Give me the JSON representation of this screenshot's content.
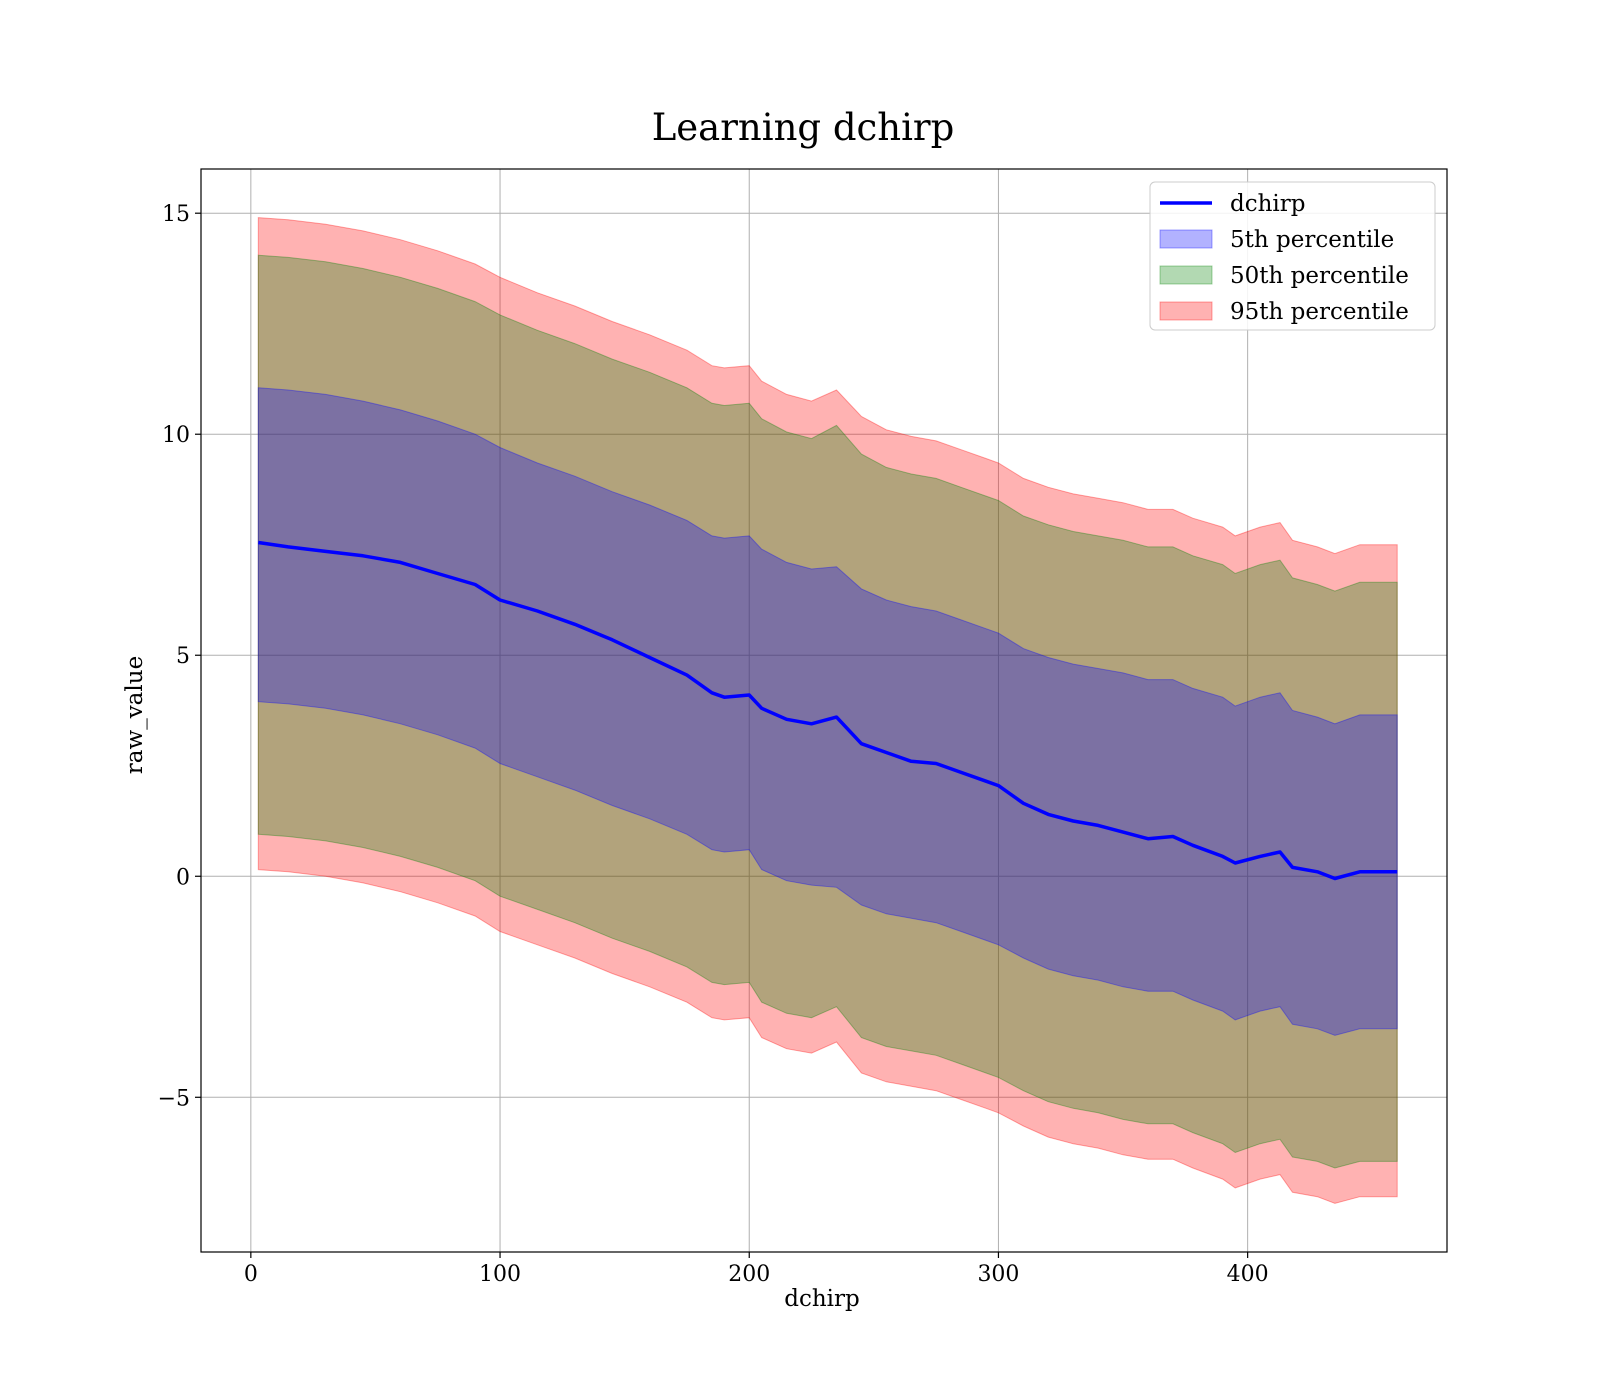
{
  "chart_data": {
    "type": "area",
    "title": "Learning dchirp",
    "xlabel": "dchirp",
    "ylabel": "raw_value",
    "xlim": [
      -20,
      480
    ],
    "ylim": [
      -8.5,
      16
    ],
    "xticks": [
      0,
      100,
      200,
      300,
      400
    ],
    "yticks": [
      -5,
      0,
      5,
      10,
      15
    ],
    "xtick_labels": [
      "0",
      "100",
      "200",
      "300",
      "400"
    ],
    "ytick_labels": [
      "−5",
      "0",
      "5",
      "10",
      "15"
    ],
    "grid": true,
    "legend_position": "top-right",
    "x": [
      3,
      15,
      30,
      45,
      60,
      75,
      90,
      100,
      115,
      130,
      145,
      160,
      175,
      185,
      190,
      200,
      205,
      215,
      225,
      235,
      245,
      255,
      265,
      275,
      285,
      295,
      300,
      310,
      320,
      330,
      340,
      350,
      360,
      370,
      378,
      390,
      395,
      405,
      413,
      418,
      428,
      435,
      445,
      460
    ],
    "series": [
      {
        "name": "dchirp",
        "kind": "line",
        "color": "#0000ff",
        "values": [
          7.55,
          7.45,
          7.35,
          7.25,
          7.1,
          6.85,
          6.6,
          6.25,
          6.0,
          5.7,
          5.35,
          4.95,
          4.55,
          4.15,
          4.05,
          4.1,
          3.8,
          3.55,
          3.45,
          3.6,
          3.0,
          2.8,
          2.6,
          2.55,
          2.35,
          2.15,
          2.05,
          1.65,
          1.4,
          1.25,
          1.15,
          1.0,
          0.85,
          0.9,
          0.7,
          0.45,
          0.3,
          0.45,
          0.55,
          0.2,
          0.1,
          -0.05,
          0.1,
          0.1
        ]
      },
      {
        "name": "5th percentile",
        "kind": "band",
        "color": "#0000ff",
        "upper": [
          11.05,
          11.0,
          10.9,
          10.75,
          10.55,
          10.3,
          10.0,
          9.7,
          9.35,
          9.05,
          8.7,
          8.4,
          8.05,
          7.7,
          7.65,
          7.7,
          7.4,
          7.1,
          6.95,
          7.0,
          6.5,
          6.25,
          6.1,
          6.0,
          5.8,
          5.6,
          5.5,
          5.15,
          4.95,
          4.8,
          4.7,
          4.6,
          4.45,
          4.45,
          4.25,
          4.05,
          3.85,
          4.05,
          4.15,
          3.75,
          3.6,
          3.45,
          3.65,
          3.65
        ],
        "lower": [
          3.95,
          3.9,
          3.8,
          3.65,
          3.45,
          3.2,
          2.9,
          2.55,
          2.25,
          1.95,
          1.6,
          1.3,
          0.95,
          0.6,
          0.55,
          0.6,
          0.15,
          -0.1,
          -0.2,
          -0.25,
          -0.65,
          -0.85,
          -0.95,
          -1.05,
          -1.25,
          -1.45,
          -1.55,
          -1.85,
          -2.1,
          -2.25,
          -2.35,
          -2.5,
          -2.6,
          -2.6,
          -2.8,
          -3.05,
          -3.25,
          -3.05,
          -2.95,
          -3.35,
          -3.45,
          -3.6,
          -3.45,
          -3.45
        ]
      },
      {
        "name": "50th percentile",
        "kind": "band",
        "color": "#008000",
        "upper": [
          14.05,
          14.0,
          13.9,
          13.75,
          13.55,
          13.3,
          13.0,
          12.7,
          12.35,
          12.05,
          11.7,
          11.4,
          11.05,
          10.7,
          10.65,
          10.7,
          10.35,
          10.05,
          9.9,
          10.2,
          9.55,
          9.25,
          9.1,
          9.0,
          8.8,
          8.6,
          8.5,
          8.15,
          7.95,
          7.8,
          7.7,
          7.6,
          7.45,
          7.45,
          7.25,
          7.05,
          6.85,
          7.05,
          7.15,
          6.75,
          6.6,
          6.45,
          6.65,
          6.65
        ],
        "lower": [
          0.95,
          0.9,
          0.8,
          0.65,
          0.45,
          0.2,
          -0.1,
          -0.45,
          -0.75,
          -1.05,
          -1.4,
          -1.7,
          -2.05,
          -2.4,
          -2.45,
          -2.4,
          -2.85,
          -3.1,
          -3.2,
          -2.95,
          -3.65,
          -3.85,
          -3.95,
          -4.05,
          -4.25,
          -4.45,
          -4.55,
          -4.85,
          -5.1,
          -5.25,
          -5.35,
          -5.5,
          -5.6,
          -5.6,
          -5.8,
          -6.05,
          -6.25,
          -6.05,
          -5.95,
          -6.35,
          -6.45,
          -6.6,
          -6.45,
          -6.45
        ]
      },
      {
        "name": "95th percentile",
        "kind": "band",
        "color": "#ff0000",
        "upper": [
          14.9,
          14.85,
          14.75,
          14.6,
          14.4,
          14.15,
          13.85,
          13.55,
          13.2,
          12.9,
          12.55,
          12.25,
          11.9,
          11.55,
          11.5,
          11.55,
          11.2,
          10.9,
          10.75,
          11.0,
          10.4,
          10.1,
          9.95,
          9.85,
          9.65,
          9.45,
          9.35,
          9.0,
          8.8,
          8.65,
          8.55,
          8.45,
          8.3,
          8.3,
          8.1,
          7.9,
          7.7,
          7.9,
          8.0,
          7.6,
          7.45,
          7.3,
          7.5,
          7.5
        ],
        "lower": [
          0.15,
          0.1,
          0.0,
          -0.15,
          -0.35,
          -0.6,
          -0.9,
          -1.25,
          -1.55,
          -1.85,
          -2.2,
          -2.5,
          -2.85,
          -3.2,
          -3.25,
          -3.2,
          -3.65,
          -3.9,
          -4.0,
          -3.75,
          -4.45,
          -4.65,
          -4.75,
          -4.85,
          -5.05,
          -5.25,
          -5.35,
          -5.65,
          -5.9,
          -6.05,
          -6.15,
          -6.3,
          -6.4,
          -6.4,
          -6.6,
          -6.85,
          -7.05,
          -6.85,
          -6.75,
          -7.15,
          -7.25,
          -7.4,
          -7.25,
          -7.25
        ]
      }
    ]
  }
}
